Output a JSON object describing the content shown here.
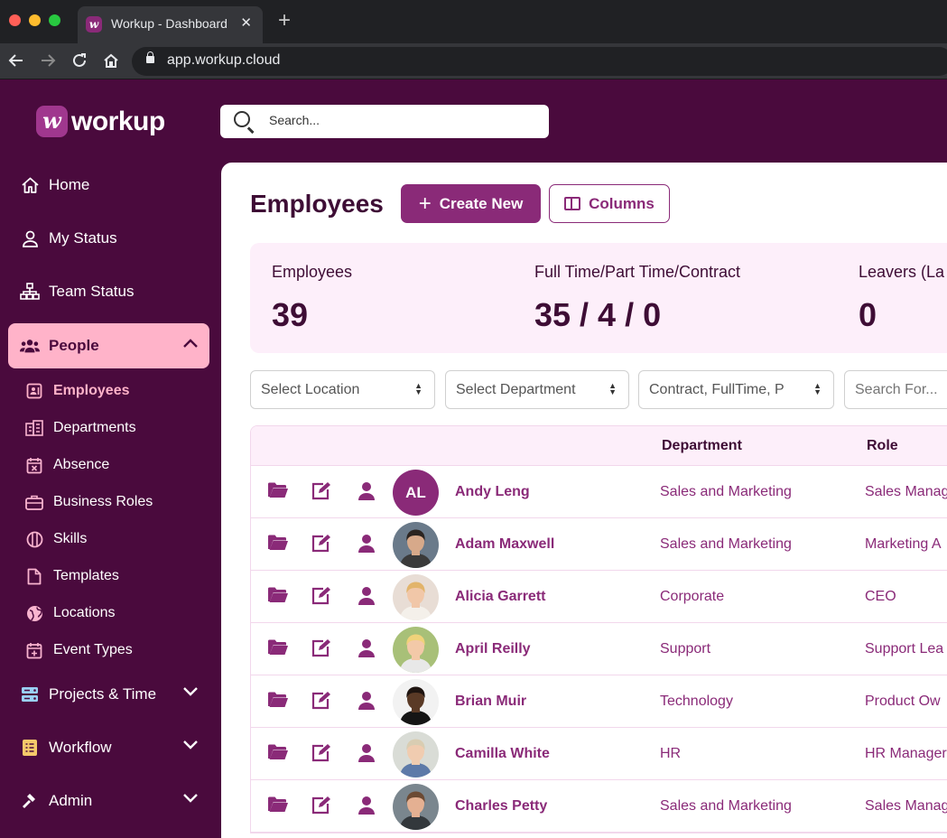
{
  "browser": {
    "tab_title": "Workup - Dashboard",
    "url": "app.workup.cloud",
    "colors": {
      "close": "#ff5f57",
      "minimize": "#febc2e",
      "maximize": "#28c840"
    }
  },
  "app": {
    "logo_mark": "w",
    "logo_text": "workup",
    "search_placeholder": "Search..."
  },
  "sidebar": {
    "items": [
      {
        "label": "Home",
        "icon": "home-icon"
      },
      {
        "label": "My Status",
        "icon": "user-icon"
      },
      {
        "label": "Team Status",
        "icon": "org-chart-icon"
      },
      {
        "label": "People",
        "icon": "people-icon",
        "active": true,
        "expanded": true
      },
      {
        "label": "Projects & Time",
        "icon": "projects-icon",
        "expanded": false
      },
      {
        "label": "Workflow",
        "icon": "workflow-icon",
        "expanded": false
      },
      {
        "label": "Admin",
        "icon": "hammer-icon",
        "expanded": false
      }
    ],
    "people_subitems": [
      {
        "label": "Employees",
        "icon": "id-card-icon",
        "active": true
      },
      {
        "label": "Departments",
        "icon": "building-icon"
      },
      {
        "label": "Absence",
        "icon": "calendar-x-icon"
      },
      {
        "label": "Business Roles",
        "icon": "briefcase-icon"
      },
      {
        "label": "Skills",
        "icon": "skills-icon"
      },
      {
        "label": "Templates",
        "icon": "document-icon"
      },
      {
        "label": "Locations",
        "icon": "globe-icon"
      },
      {
        "label": "Event Types",
        "icon": "calendar-plus-icon"
      }
    ]
  },
  "main": {
    "title": "Employees",
    "create_label": "Create New",
    "columns_label": "Columns",
    "stats": [
      {
        "label": "Employees",
        "value": "39"
      },
      {
        "label": "Full Time/Part Time/Contract",
        "value": "35 / 4 / 0"
      },
      {
        "label": "Leavers (La",
        "value": "0"
      }
    ],
    "filters": {
      "location": "Select Location",
      "department": "Select Department",
      "contract": "Contract, FullTime, P",
      "search_placeholder": "Search For..."
    },
    "table": {
      "headers": {
        "department": "Department",
        "role": "Role"
      },
      "rows": [
        {
          "initials": "AL",
          "name": "Andy Leng",
          "department": "Sales and Marketing",
          "role": "Sales Manag"
        },
        {
          "name": "Adam Maxwell",
          "department": "Sales and Marketing",
          "role": "Marketing A",
          "photo": {
            "bg": "#6a7a8a",
            "skin": "#d7a98a",
            "hair": "#2b2420",
            "shirt": "#3a3a3a"
          }
        },
        {
          "name": "Alicia Garrett",
          "department": "Corporate",
          "role": "CEO",
          "photo": {
            "bg": "#e8ddd5",
            "skin": "#f1c7a8",
            "hair": "#e2b46a",
            "shirt": "#f4f0ea"
          }
        },
        {
          "name": "April Reilly",
          "department": "Support",
          "role": "Support Lea",
          "photo": {
            "bg": "#a8c078",
            "skin": "#f3c9a8",
            "hair": "#f0d27a",
            "shirt": "#e8e8e8"
          }
        },
        {
          "name": "Brian Muir",
          "department": "Technology",
          "role": "Product Ow",
          "photo": {
            "bg": "#f2f2f2",
            "skin": "#5a3a26",
            "hair": "#1e1410",
            "shirt": "#151515"
          }
        },
        {
          "name": "Camilla White",
          "department": "HR",
          "role": "HR Manager",
          "photo": {
            "bg": "#d9dcd6",
            "skin": "#f0ccb0",
            "hair": "#d9cdb2",
            "shirt": "#5d7aa8"
          }
        },
        {
          "name": "Charles Petty",
          "department": "Sales and Marketing",
          "role": "Sales Manag",
          "photo": {
            "bg": "#7a868e",
            "skin": "#e4b092",
            "hair": "#6b4a33",
            "shirt": "#33383c"
          }
        }
      ]
    }
  }
}
